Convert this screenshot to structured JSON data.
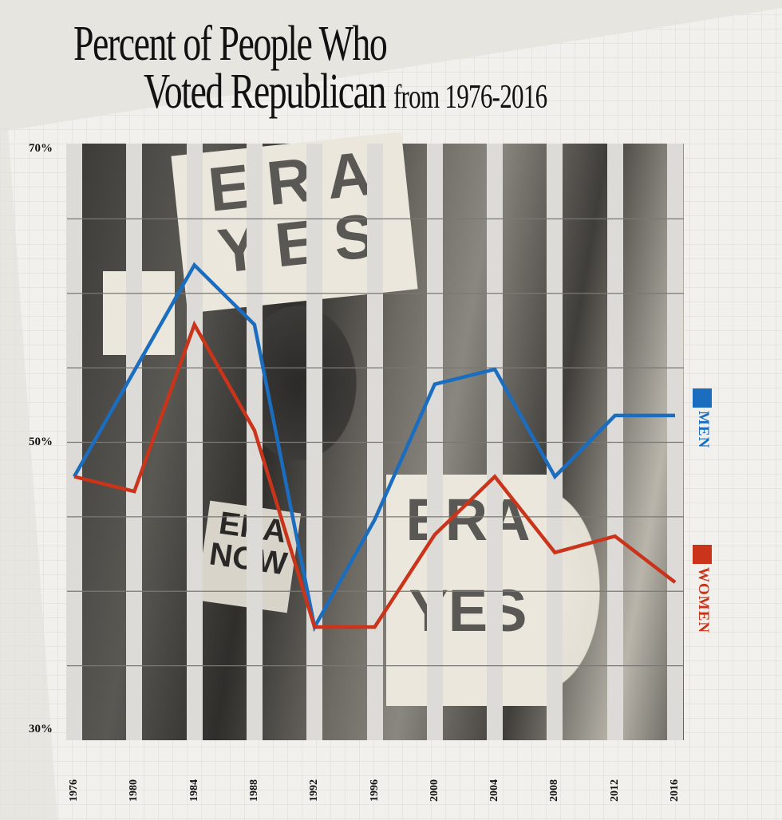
{
  "title": {
    "line1": "Percent of People Who",
    "line2_main": "Voted Republican",
    "line2_sub": "from 1976-2016"
  },
  "y_axis": {
    "labels": [
      {
        "text": "70%",
        "value": 70
      },
      {
        "text": "50%",
        "value": 50
      },
      {
        "text": "30%",
        "value": 30
      }
    ]
  },
  "x_axis": {
    "labels": [
      "1976",
      "1980",
      "1984",
      "1988",
      "1992",
      "1996",
      "2000",
      "2004",
      "2008",
      "2012",
      "2016"
    ]
  },
  "legend": {
    "men": {
      "label": "MEN",
      "color": "#1a6dbf"
    },
    "women": {
      "label": "WOMEN",
      "color": "#c9341a"
    }
  },
  "background_photo": {
    "signs": [
      "ERA YES",
      "ERA NOW",
      "ERA YES"
    ]
  },
  "chart_data": {
    "type": "line",
    "title": "Percent of People Who Voted Republican from 1976-2016",
    "xlabel": "",
    "ylabel": "",
    "ylim": [
      30,
      70
    ],
    "y_ticks": [
      30,
      50,
      70
    ],
    "grid": "horizontal every 5%",
    "legend_position": "right",
    "x": [
      1976,
      1980,
      1984,
      1988,
      1992,
      1996,
      2000,
      2004,
      2008,
      2012,
      2016
    ],
    "series": [
      {
        "name": "MEN",
        "color": "#1a6dbf",
        "values": [
          47.7,
          54.8,
          61.9,
          57.9,
          37.6,
          44.8,
          53.9,
          54.9,
          47.7,
          51.8,
          51.8
        ]
      },
      {
        "name": "WOMEN",
        "color": "#c9341a",
        "values": [
          47.7,
          46.7,
          57.9,
          50.8,
          37.6,
          37.6,
          43.8,
          47.7,
          42.6,
          43.7,
          40.6
        ]
      }
    ]
  }
}
